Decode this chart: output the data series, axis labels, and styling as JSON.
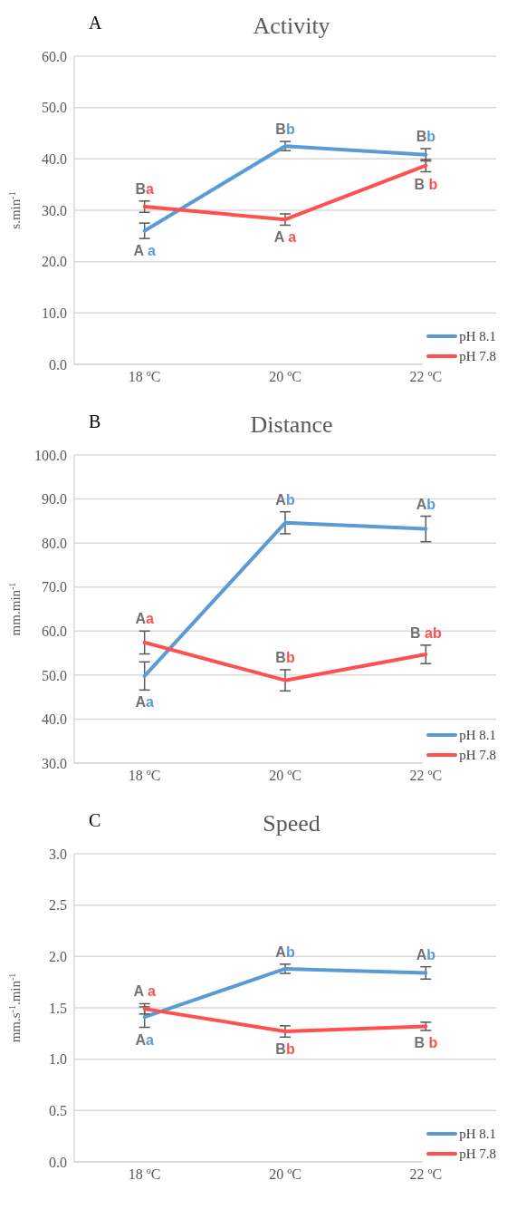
{
  "chart_data": [
    {
      "type": "line",
      "title": "Activity",
      "ylabel": "s.min$^{-1}$",
      "categories": [
        "18 ºC",
        "20 ºC",
        "22 ºC"
      ],
      "ylim": [
        0,
        60
      ],
      "yticks": [
        {
          "value": 0,
          "label": "0.0"
        },
        {
          "value": 10,
          "label": "10.0"
        },
        {
          "value": 20,
          "label": "20.0"
        },
        {
          "value": 30,
          "label": "30.0"
        },
        {
          "value": 40,
          "label": "40.0"
        },
        {
          "value": 50,
          "label": "50.0"
        },
        {
          "value": 60,
          "label": "60.0"
        }
      ],
      "grid": "y",
      "legend": "bottom right",
      "marker": "none",
      "line_style": "solid",
      "series": [
        {
          "name": "pH 8.1",
          "color": "#5b9bd5",
          "values": [
            26.0,
            42.5,
            40.8
          ],
          "errors": [
            1.5,
            0.9,
            1.2
          ]
        },
        {
          "name": "pH 7.8",
          "color": "#ff5050",
          "values": [
            30.7,
            28.2,
            38.7
          ],
          "errors": [
            1.1,
            1.1,
            1.2
          ]
        }
      ],
      "annotations": [
        "A",
        {
          "text": "Ba",
          "x": "18 ºC",
          "y": 31.8
        },
        {
          "text": "A a",
          "x": "18 ºC",
          "y": 24.5
        },
        {
          "text": "Bb",
          "x": "20 ºC",
          "y": 43.4
        },
        {
          "text": "A a",
          "x": "20 ºC",
          "y": 27.1
        },
        {
          "text": "Bb",
          "x": "22 ºC",
          "y": 42.0
        },
        {
          "text": "B b",
          "x": "22 ºC",
          "y": 37.5
        }
      ]
    },
    {
      "type": "line",
      "title": "Distance",
      "ylabel": "mm.min$^{-1}$",
      "categories": [
        "18 ºC",
        "20 ºC",
        "22 ºC"
      ],
      "ylim": [
        30,
        100
      ],
      "yticks": [
        {
          "value": 30,
          "label": "30.0"
        },
        {
          "value": 40,
          "label": "40.0"
        },
        {
          "value": 50,
          "label": "50.0"
        },
        {
          "value": 60,
          "label": "60.0"
        },
        {
          "value": 70,
          "label": "70.0"
        },
        {
          "value": 80,
          "label": "80.0"
        },
        {
          "value": 90,
          "label": "90.0"
        },
        {
          "value": 100,
          "label": "100.0"
        }
      ],
      "grid": "y",
      "legend": "bottom right",
      "marker": "none",
      "line_style": "solid",
      "series": [
        {
          "name": "pH 8.1",
          "color": "#5b9bd5",
          "values": [
            49.8,
            84.6,
            83.2
          ],
          "errors": [
            3.2,
            2.5,
            2.9
          ]
        },
        {
          "name": "pH 7.8",
          "color": "#ff5050",
          "values": [
            57.4,
            48.8,
            54.7
          ],
          "errors": [
            2.6,
            2.4,
            2.1
          ]
        }
      ],
      "annotations": [
        "B",
        {
          "text": "Aa",
          "x": "18 ºC",
          "y": 60.0
        },
        {
          "text": "Aa",
          "x": "18 ºC",
          "y": 46.6
        },
        {
          "text": "Ab",
          "x": "20 ºC",
          "y": 87.1
        },
        {
          "text": "Bb",
          "x": "20 ºC",
          "y": 51.2
        },
        {
          "text": "Ab",
          "x": "22 ºC",
          "y": 86.1
        },
        {
          "text": "B ab",
          "x": "22 ºC",
          "y": 56.8
        }
      ]
    },
    {
      "type": "line",
      "title": "Speed",
      "ylabel": "mm.s$^{-1}$.min$^{-1}$",
      "categories": [
        "18 ºC",
        "20 ºC",
        "22 ºC"
      ],
      "ylim": [
        0,
        3
      ],
      "yticks": [
        {
          "value": 0,
          "label": "0.0"
        },
        {
          "value": 0.5,
          "label": "0.5"
        },
        {
          "value": 1,
          "label": "1.0"
        },
        {
          "value": 1.5,
          "label": "1.5"
        },
        {
          "value": 2,
          "label": "2.0"
        },
        {
          "value": 2.5,
          "label": "2.5"
        },
        {
          "value": 3,
          "label": "3.0"
        }
      ],
      "grid": "y",
      "legend": "bottom right",
      "marker": "none",
      "line_style": "solid",
      "series": [
        {
          "name": "pH 8.1",
          "color": "#5b9bd5",
          "values": [
            1.41,
            1.88,
            1.84
          ],
          "errors": [
            0.1,
            0.045,
            0.06
          ]
        },
        {
          "name": "pH 7.8",
          "color": "#ff5050",
          "values": [
            1.49,
            1.27,
            1.32
          ],
          "errors": [
            0.05,
            0.055,
            0.04
          ]
        }
      ],
      "annotations": [
        "C",
        {
          "text": "A a",
          "x": "18 ºC",
          "y": 1.54
        },
        {
          "text": "Aa",
          "x": "18 ºC",
          "y": 1.31
        },
        {
          "text": "Ab",
          "x": "20 ºC",
          "y": 1.925
        },
        {
          "text": "Bb",
          "x": "20 ºC",
          "y": 1.215
        },
        {
          "text": "Ab",
          "x": "22 ºC",
          "y": 1.9
        },
        {
          "text": "B b",
          "x": "22 ºC",
          "y": 1.28
        }
      ]
    }
  ]
}
